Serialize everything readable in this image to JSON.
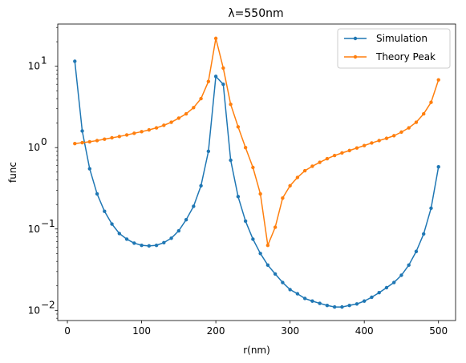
{
  "chart_data": {
    "type": "line",
    "title": "λ=550nm",
    "xlabel": "r(nm)",
    "ylabel": "func",
    "xlim": [
      -13,
      523
    ],
    "ylim": [
      0.0075,
      33
    ],
    "yscale": "log",
    "grid": false,
    "legend_position": "top-right",
    "x_ticks": [
      0,
      100,
      200,
      300,
      400,
      500
    ],
    "x_tick_labels": [
      "0",
      "100",
      "200",
      "300",
      "400",
      "500"
    ],
    "y_ticks": [
      0.01,
      0.1,
      1,
      10
    ],
    "y_tick_labels": [
      "10",
      "10",
      "10",
      "10"
    ],
    "y_tick_exponents": [
      "−2",
      "−1",
      "0",
      "1"
    ],
    "x": [
      10,
      20,
      30,
      40,
      50,
      60,
      70,
      80,
      90,
      100,
      110,
      120,
      130,
      140,
      150,
      160,
      170,
      180,
      190,
      200,
      210,
      220,
      230,
      240,
      250,
      260,
      270,
      280,
      290,
      300,
      310,
      320,
      330,
      340,
      350,
      360,
      370,
      380,
      390,
      400,
      410,
      420,
      430,
      440,
      450,
      460,
      470,
      480,
      490,
      500
    ],
    "series": [
      {
        "name": "Simulation",
        "color": "#1f77b4",
        "values": [
          11.5,
          1.6,
          0.55,
          0.27,
          0.165,
          0.115,
          0.088,
          0.075,
          0.067,
          0.063,
          0.062,
          0.063,
          0.068,
          0.077,
          0.095,
          0.13,
          0.19,
          0.34,
          0.9,
          7.5,
          6.0,
          0.7,
          0.25,
          0.125,
          0.075,
          0.05,
          0.036,
          0.028,
          0.022,
          0.018,
          0.016,
          0.014,
          0.013,
          0.0122,
          0.0115,
          0.011,
          0.011,
          0.0115,
          0.012,
          0.013,
          0.0145,
          0.0165,
          0.019,
          0.022,
          0.027,
          0.036,
          0.053,
          0.087,
          0.18,
          0.58
        ]
      },
      {
        "name": "Theory Peak",
        "color": "#ff7f0e",
        "values": [
          1.12,
          1.15,
          1.18,
          1.22,
          1.27,
          1.32,
          1.37,
          1.43,
          1.5,
          1.57,
          1.65,
          1.75,
          1.88,
          2.05,
          2.3,
          2.6,
          3.1,
          4.0,
          6.5,
          22.0,
          9.5,
          3.4,
          1.8,
          1.0,
          0.57,
          0.27,
          0.063,
          0.105,
          0.24,
          0.34,
          0.43,
          0.52,
          0.59,
          0.66,
          0.73,
          0.8,
          0.86,
          0.92,
          0.99,
          1.06,
          1.14,
          1.22,
          1.3,
          1.4,
          1.55,
          1.75,
          2.05,
          2.6,
          3.6,
          6.8
        ]
      }
    ]
  }
}
